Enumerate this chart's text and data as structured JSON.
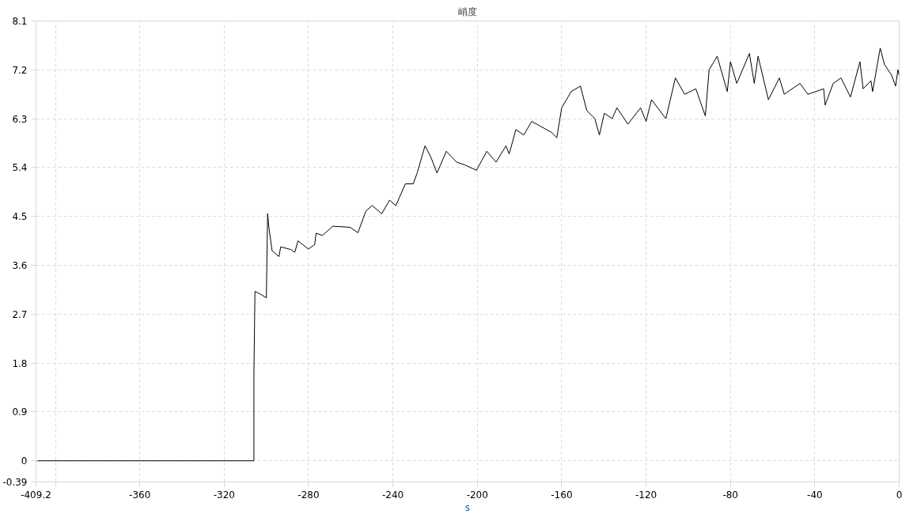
{
  "chart_data": {
    "type": "line",
    "title": "峭度",
    "xlabel": "s",
    "xlim": [
      -409.2,
      0
    ],
    "xticks": [
      -409.2,
      {
        "value": -400,
        "label": null
      },
      -360,
      -320,
      -280,
      -240,
      -200,
      -160,
      -120,
      -80,
      -40,
      0
    ],
    "ylim": [
      -0.39,
      8.1
    ],
    "yticks": [
      -0.39,
      0,
      0.9,
      1.8,
      2.7,
      3.6,
      4.5,
      5.4,
      6.3,
      7.2,
      8.1
    ],
    "grid": true,
    "marker": "none",
    "line_style": "solid",
    "series": [
      {
        "color": "#000000",
        "x": [
          -409.2,
          -305.9,
          -305.9,
          -305.4,
          -302.0,
          -300.0,
          -299.4,
          -298.8,
          -297.3,
          -294.0,
          -293.2,
          -288.4,
          -286.5,
          -285.0,
          -280.1,
          -277.1,
          -276.4,
          -273.4,
          -268.5,
          -260.3,
          -256.6,
          -252.8,
          -249.8,
          -245.3,
          -241.6,
          -238.6,
          -234.1,
          -230.4,
          -228.5,
          -224.8,
          -222.1,
          -219.1,
          -214.7,
          -209.8,
          -206.0,
          -200.4,
          -195.5,
          -191.1,
          -186.4,
          -184.9,
          -181.7,
          -178.0,
          -174.2,
          -164.9,
          -162.3,
          -160.0,
          -155.5,
          -151.1,
          -148.1,
          -144.3,
          -142.1,
          -139.8,
          -136.1,
          -133.8,
          -128.6,
          -122.6,
          -120.0,
          -117.4,
          -110.6,
          -106.1,
          -101.7,
          -96.4,
          -91.9,
          -90.1,
          -86.3,
          -81.5,
          -80.0,
          -77.0,
          -71.0,
          -68.7,
          -66.9,
          -62.0,
          -56.8,
          -54.5,
          -47.0,
          -43.3,
          -35.8,
          -35.1,
          -31.3,
          -27.6,
          -23.1,
          -18.6,
          -17.1,
          -13.4,
          -12.6,
          -9.0,
          -7.0,
          -3.6,
          -1.7,
          -0.6,
          0
        ],
        "values": [
          0,
          0,
          1.57,
          3.12,
          3.05,
          3.0,
          4.55,
          4.3,
          3.87,
          3.76,
          3.94,
          3.89,
          3.84,
          4.05,
          3.9,
          3.98,
          4.19,
          4.15,
          4.32,
          4.3,
          4.2,
          4.6,
          4.7,
          4.55,
          4.8,
          4.7,
          5.1,
          5.1,
          5.3,
          5.8,
          5.6,
          5.3,
          5.7,
          5.5,
          5.45,
          5.35,
          5.7,
          5.5,
          5.8,
          5.65,
          6.1,
          6.0,
          6.25,
          6.05,
          5.95,
          6.5,
          6.8,
          6.9,
          6.45,
          6.3,
          6.0,
          6.4,
          6.3,
          6.5,
          6.2,
          6.5,
          6.25,
          6.65,
          6.3,
          7.05,
          6.75,
          6.85,
          6.35,
          7.2,
          7.45,
          6.8,
          7.35,
          6.95,
          7.5,
          6.95,
          7.45,
          6.65,
          7.05,
          6.75,
          6.95,
          6.75,
          6.85,
          6.55,
          6.95,
          7.05,
          6.7,
          7.35,
          6.85,
          7.0,
          6.8,
          7.6,
          7.3,
          7.1,
          6.9,
          7.2,
          7.1
        ]
      }
    ]
  }
}
